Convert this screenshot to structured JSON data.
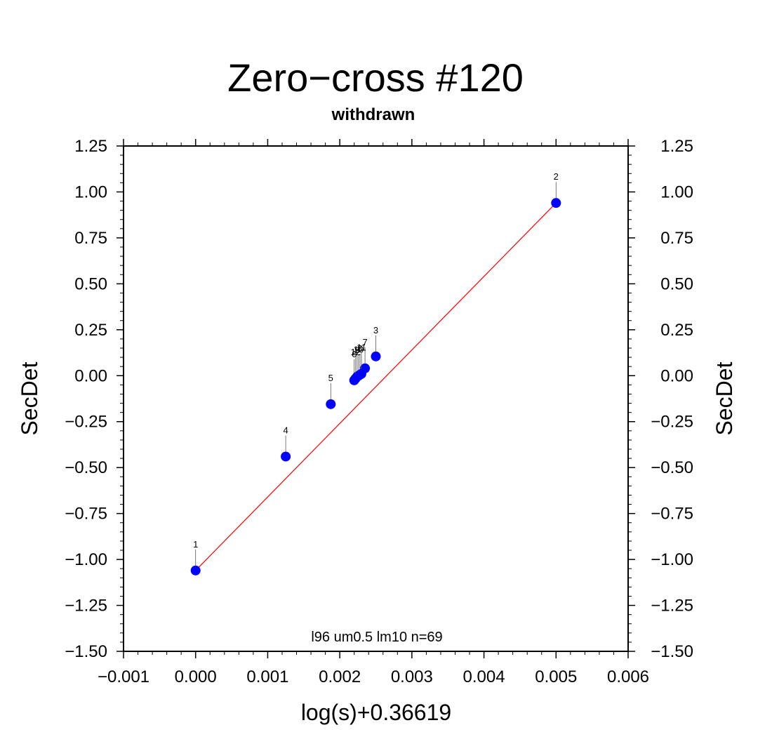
{
  "chart_data": {
    "type": "scatter",
    "title": "Zero−cross #120",
    "subtitle": "withdrawn",
    "xlabel": "log(s)+0.36619",
    "ylabel": "SecDet",
    "ylabel_right": "SecDet",
    "xlim": [
      -0.001,
      0.006
    ],
    "ylim": [
      -1.5,
      1.25
    ],
    "x_ticks": [
      {
        "value": -0.001,
        "label": "−0.001"
      },
      {
        "value": 0.0,
        "label": "0.000"
      },
      {
        "value": 0.001,
        "label": "0.001"
      },
      {
        "value": 0.002,
        "label": "0.002"
      },
      {
        "value": 0.003,
        "label": "0.003"
      },
      {
        "value": 0.004,
        "label": "0.004"
      },
      {
        "value": 0.005,
        "label": "0.005"
      },
      {
        "value": 0.006,
        "label": "0.006"
      }
    ],
    "y_ticks": [
      {
        "value": 1.25,
        "label": "1.25"
      },
      {
        "value": 1.0,
        "label": "1.00"
      },
      {
        "value": 0.75,
        "label": "0.75"
      },
      {
        "value": 0.5,
        "label": "0.50"
      },
      {
        "value": 0.25,
        "label": "0.25"
      },
      {
        "value": 0.0,
        "label": "0.00"
      },
      {
        "value": -0.25,
        "label": "−0.25"
      },
      {
        "value": -0.5,
        "label": "−0.50"
      },
      {
        "value": -0.75,
        "label": "−0.75"
      },
      {
        "value": -1.0,
        "label": "−1.00"
      },
      {
        "value": -1.25,
        "label": "−1.25"
      },
      {
        "value": -1.5,
        "label": "−1.50"
      }
    ],
    "points": [
      {
        "label": "1",
        "x": 0.0,
        "y": -1.06
      },
      {
        "label": "2",
        "x": 0.005,
        "y": 0.94
      },
      {
        "label": "3",
        "x": 0.0025,
        "y": 0.105
      },
      {
        "label": "4",
        "x": 0.00125,
        "y": -0.44
      },
      {
        "label": "5",
        "x": 0.001875,
        "y": -0.155
      },
      {
        "label": "6",
        "x": 0.0022,
        "y": -0.025
      },
      {
        "label": "7",
        "x": 0.00235,
        "y": 0.04
      },
      {
        "label": "8",
        "x": 0.00228,
        "y": 0.005
      },
      {
        "label": "9",
        "x": 0.00224,
        "y": -0.005
      },
      {
        "label": "10",
        "x": 0.00226,
        "y": 0.0
      },
      {
        "label": "11",
        "x": 0.0023,
        "y": 0.01
      },
      {
        "label": "12",
        "x": 0.00222,
        "y": -0.015
      }
    ],
    "fit_line": {
      "x": [
        0.0,
        0.005
      ],
      "y": [
        -1.06,
        0.94
      ]
    },
    "annotation": "l96 um0.5 lm10 n=69",
    "grid": false,
    "colors": {
      "points": "#0000ff",
      "fit_line": "#ff0000",
      "frame": "#000000"
    }
  }
}
